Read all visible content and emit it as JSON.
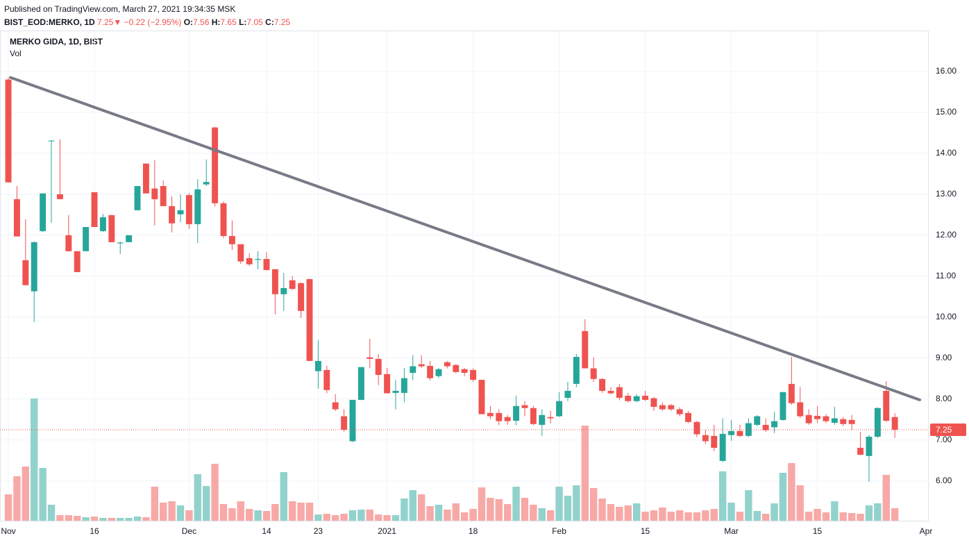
{
  "header": {
    "published": "Published on TradingView.com, March 27, 2021 19:34:35 MSK",
    "symbol": "BIST_EOD:MERKO, 1D",
    "last": "7.25",
    "arrow": "▼",
    "change": "−0.22 (−2.95%)",
    "o_label": "O:",
    "o": "7.56",
    "h_label": "H:",
    "h": "7.65",
    "l_label": "L:",
    "l": "7.05",
    "c_label": "C:",
    "c": "7.25"
  },
  "chart_data": {
    "type": "candlestick",
    "title": "MERKO GIDA, 1D, BIST",
    "volume_label": "Vol",
    "up_color": "#26a69a",
    "down_color": "#ef5350",
    "up_volume_color": "#92d2cc",
    "down_volume_color": "#f7a9a7",
    "trend_color": "#787b86",
    "xlim": [
      -0.97,
      106.94
    ],
    "ylim": [
      5.03,
      16.98
    ],
    "volume_ylim": [
      0,
      705
    ],
    "grid": true,
    "xticks": [
      {
        "value": 0,
        "label": "Nov"
      },
      {
        "value": 10,
        "label": "16"
      },
      {
        "value": 21,
        "label": "Dec"
      },
      {
        "value": 30,
        "label": "14"
      },
      {
        "value": 36,
        "label": "23"
      },
      {
        "value": 44,
        "label": "2021"
      },
      {
        "value": 54,
        "label": "18"
      },
      {
        "value": 64,
        "label": "Feb"
      },
      {
        "value": 74,
        "label": "15"
      },
      {
        "value": 84,
        "label": "Mar"
      },
      {
        "value": 94,
        "label": "15"
      },
      {
        "value": 107,
        "label": "Apr"
      }
    ],
    "yticks": [
      {
        "value": 6,
        "label": "6.00"
      },
      {
        "value": 7,
        "label": "7.00"
      },
      {
        "value": 8,
        "label": "8.00"
      },
      {
        "value": 9,
        "label": "9.00"
      },
      {
        "value": 10,
        "label": "10.00"
      },
      {
        "value": 11,
        "label": "11.00"
      },
      {
        "value": 12,
        "label": "12.00"
      },
      {
        "value": 13,
        "label": "13.00"
      },
      {
        "value": 14,
        "label": "14.00"
      },
      {
        "value": 15,
        "label": "15.00"
      },
      {
        "value": 16,
        "label": "16.00"
      }
    ],
    "last_price": {
      "value": 7.25,
      "label": "7.25"
    },
    "trend_line": {
      "x": [
        0.25,
        105.9
      ],
      "y": [
        15.85,
        7.98
      ]
    },
    "open": [
      15.8,
      12.88,
      11.39,
      10.63,
      12.1,
      14.3,
      13.0,
      12.0,
      11.61,
      11.61,
      13.05,
      12.1,
      12.49,
      11.8,
      11.83,
      12.61,
      13.75,
      13.14,
      13.2,
      12.71,
      12.51,
      12.98,
      12.27,
      13.24,
      14.63,
      12.78,
      11.98,
      11.78,
      11.44,
      11.4,
      11.42,
      11.17,
      10.56,
      10.9,
      10.83,
      10.93,
      8.68,
      8.71,
      7.92,
      7.58,
      6.97,
      7.98,
      9.02,
      8.98,
      8.61,
      8.15,
      8.15,
      8.64,
      8.85,
      8.81,
      8.56,
      8.9,
      8.83,
      8.73,
      8.71,
      8.47,
      7.66,
      7.66,
      7.56,
      7.47,
      7.85,
      7.78,
      7.37,
      7.56,
      7.58,
      8.03,
      8.37,
      9.66,
      8.75,
      8.49,
      8.2,
      8.29,
      8.08,
      7.95,
      8.08,
      8.02,
      7.85,
      7.85,
      7.75,
      7.66,
      7.44,
      7.12,
      7.1,
      6.49,
      7.12,
      7.22,
      7.1,
      7.37,
      7.37,
      7.31,
      7.49,
      8.37,
      7.92,
      7.61,
      7.59,
      7.58,
      7.42,
      7.51,
      7.49,
      6.81,
      6.61,
      7.08,
      8.2,
      7.56
    ],
    "high": [
      15.85,
      13.2,
      12.39,
      11.85,
      13.02,
      14.32,
      14.34,
      12.49,
      11.61,
      12.2,
      13.05,
      12.52,
      12.5,
      11.85,
      12.0,
      13.2,
      13.75,
      13.83,
      13.34,
      12.95,
      13.0,
      13.03,
      13.37,
      13.85,
      14.65,
      12.83,
      12.36,
      11.78,
      11.56,
      11.61,
      11.59,
      11.17,
      11.08,
      11.0,
      10.85,
      10.93,
      9.44,
      8.81,
      8.12,
      7.75,
      7.98,
      8.78,
      9.47,
      9.1,
      8.76,
      8.46,
      8.76,
      9.07,
      9.07,
      8.93,
      8.76,
      8.93,
      8.86,
      8.76,
      8.75,
      8.47,
      7.83,
      7.75,
      7.61,
      8.08,
      7.95,
      7.83,
      7.75,
      7.71,
      8.17,
      8.42,
      9.1,
      9.95,
      9.02,
      8.51,
      8.29,
      8.37,
      8.15,
      8.12,
      8.2,
      8.05,
      7.92,
      7.88,
      7.8,
      7.71,
      7.47,
      7.24,
      7.37,
      7.53,
      7.49,
      7.37,
      7.53,
      7.61,
      7.53,
      7.69,
      8.17,
      9.03,
      8.29,
      7.75,
      7.83,
      7.63,
      7.81,
      7.56,
      7.61,
      7.2,
      7.12,
      7.8,
      8.44,
      7.65
    ],
    "low": [
      13.29,
      11.97,
      10.78,
      9.88,
      12.08,
      12.3,
      12.88,
      11.6,
      11.1,
      11.61,
      12.2,
      12.08,
      11.83,
      11.54,
      11.83,
      12.61,
      13.02,
      12.24,
      12.71,
      12.07,
      12.32,
      12.15,
      11.81,
      13.2,
      12.7,
      11.93,
      11.64,
      11.3,
      11.25,
      11.17,
      11.14,
      10.07,
      10.15,
      10.66,
      9.98,
      8.93,
      8.25,
      8.14,
      7.71,
      7.2,
      6.95,
      7.97,
      8.76,
      8.34,
      8.14,
      7.75,
      7.92,
      8.46,
      8.76,
      8.46,
      8.51,
      8.75,
      8.63,
      8.56,
      8.42,
      7.63,
      7.51,
      7.36,
      7.37,
      7.36,
      7.58,
      7.36,
      7.1,
      7.41,
      7.56,
      7.95,
      8.29,
      8.75,
      8.42,
      8.15,
      8.12,
      7.97,
      7.92,
      7.92,
      7.95,
      7.71,
      7.71,
      7.71,
      7.58,
      7.41,
      7.07,
      6.9,
      6.73,
      6.46,
      6.98,
      7.07,
      7.07,
      7.34,
      7.2,
      7.17,
      7.47,
      7.86,
      7.54,
      7.37,
      7.41,
      7.41,
      7.37,
      7.34,
      7.24,
      6.63,
      5.98,
      7.05,
      7.44,
      7.05
    ],
    "close": [
      13.29,
      11.97,
      10.78,
      11.83,
      13.02,
      14.31,
      12.88,
      11.61,
      11.1,
      12.2,
      12.2,
      12.44,
      11.83,
      11.82,
      12.0,
      13.2,
      13.02,
      12.88,
      12.71,
      12.29,
      12.61,
      12.27,
      13.12,
      13.3,
      12.78,
      11.98,
      11.78,
      11.36,
      11.29,
      11.42,
      11.15,
      10.56,
      10.71,
      10.69,
      10.15,
      8.93,
      8.93,
      8.22,
      7.75,
      7.25,
      7.98,
      8.78,
      8.98,
      8.59,
      8.14,
      8.2,
      8.51,
      8.8,
      8.8,
      8.51,
      8.73,
      8.8,
      8.66,
      8.64,
      8.47,
      7.63,
      7.58,
      7.46,
      7.46,
      7.83,
      7.78,
      7.39,
      7.61,
      7.53,
      7.95,
      8.2,
      9.03,
      8.75,
      8.49,
      8.2,
      8.14,
      8.03,
      7.95,
      8.07,
      7.98,
      7.81,
      7.75,
      7.75,
      7.63,
      7.44,
      7.14,
      6.97,
      6.81,
      7.15,
      7.22,
      7.1,
      7.41,
      7.58,
      7.24,
      7.46,
      8.17,
      7.9,
      7.58,
      7.41,
      7.51,
      7.46,
      7.53,
      7.39,
      7.39,
      6.64,
      7.08,
      7.78,
      7.47,
      7.25
    ],
    "volume": [
      38,
      64,
      78,
      176,
      76,
      23,
      8,
      8,
      7,
      5,
      6,
      4,
      4,
      4,
      4,
      6,
      5,
      49,
      26,
      28,
      22,
      15,
      67,
      50,
      82,
      24,
      18,
      28,
      17,
      15,
      14,
      24,
      70,
      28,
      26,
      26,
      9,
      10,
      8,
      10,
      15,
      16,
      16,
      9,
      8,
      8,
      32,
      44,
      38,
      21,
      23,
      16,
      25,
      12,
      17,
      48,
      33,
      31,
      24,
      49,
      33,
      23,
      18,
      15,
      49,
      36,
      51,
      137,
      47,
      32,
      24,
      20,
      22,
      25,
      13,
      15,
      19,
      13,
      15,
      12,
      12,
      15,
      17,
      71,
      26,
      13,
      44,
      14,
      10,
      25,
      69,
      83,
      51,
      13,
      17,
      12,
      28,
      12,
      11,
      10,
      22,
      25,
      66,
      18
    ]
  }
}
